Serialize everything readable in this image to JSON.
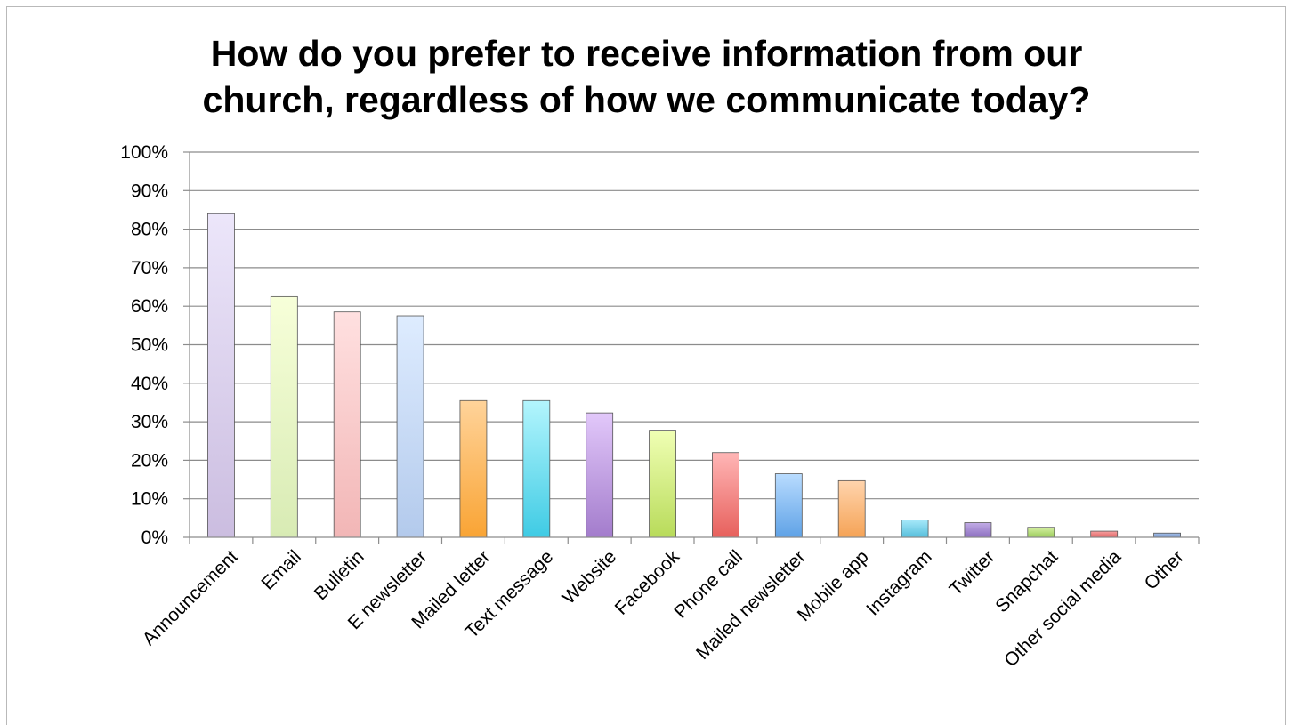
{
  "chart_data": {
    "type": "bar",
    "title_lines": [
      "How do you prefer to receive information from our",
      "church, regardless of how we communicate today?"
    ],
    "xlabel": "",
    "ylabel": "",
    "ylim": [
      0,
      100
    ],
    "y_ticks": [
      "0%",
      "10%",
      "20%",
      "30%",
      "40%",
      "50%",
      "60%",
      "70%",
      "80%",
      "90%",
      "100%"
    ],
    "grid": true,
    "legend": "none",
    "categories": [
      "Announcement",
      "Email",
      "Bulletin",
      "E newsletter",
      "Mailed letter",
      "Text message",
      "Website",
      "Facebook",
      "Phone call",
      "Mailed newsletter",
      "Mobile app",
      "Instagram",
      "Twitter",
      "Snapchat",
      "Other social media",
      "Other"
    ],
    "values": [
      84,
      62.5,
      58.5,
      57.5,
      35.5,
      35.5,
      32.3,
      27.8,
      22,
      16.5,
      14.7,
      4.5,
      3.8,
      2.6,
      1.6,
      1.1
    ],
    "colors": [
      [
        "#ece6fa",
        "#cbbde0"
      ],
      [
        "#f7ffd9",
        "#d8ebb4"
      ],
      [
        "#ffe0e0",
        "#f2b6b6"
      ],
      [
        "#deecff",
        "#b3caec"
      ],
      [
        "#ffd39a",
        "#f9a434"
      ],
      [
        "#b3f5fd",
        "#3fcbe4"
      ],
      [
        "#e2c8fa",
        "#a37ccc"
      ],
      [
        "#f0ffb4",
        "#b8db5a"
      ],
      [
        "#ffb6b6",
        "#e7605c"
      ],
      [
        "#b9dcff",
        "#5fa2e6"
      ],
      [
        "#ffd4ad",
        "#f5a356"
      ],
      [
        "#a7e8f9",
        "#56bfdc"
      ],
      [
        "#c2ace6",
        "#8c6fc0"
      ],
      [
        "#d6f0a4",
        "#9bcc5a"
      ],
      [
        "#f7a3a3",
        "#e06262"
      ],
      [
        "#a8c2ea",
        "#6f90c8"
      ]
    ]
  }
}
